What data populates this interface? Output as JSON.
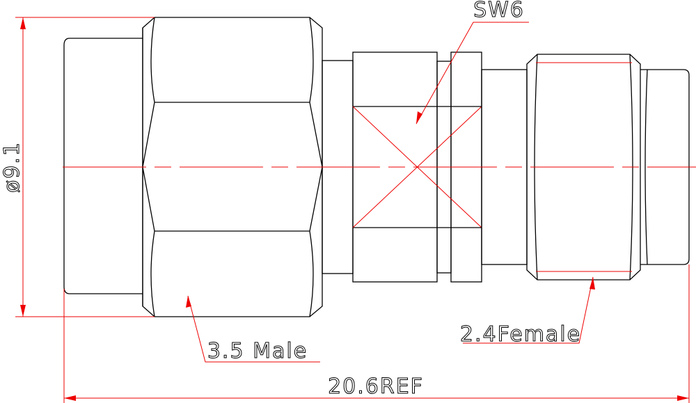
{
  "labels": {
    "wrench": "SW6",
    "diameter": "ø9.1",
    "male": "3.5 Male",
    "female": "2.4Female",
    "length": "20.6REF"
  }
}
